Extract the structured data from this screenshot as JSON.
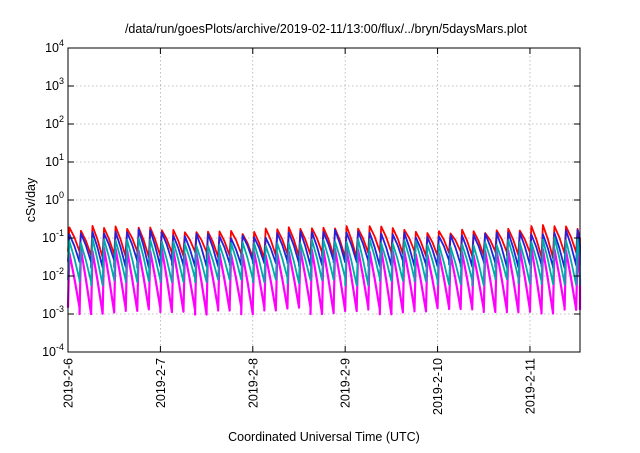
{
  "chart_data": {
    "type": "line",
    "title": "/data/run/goesPlots/archive/2019-02-11/13:00/flux/../bryn/5daysMars.plot",
    "xlabel": "Coordinated Universal Time (UTC)",
    "ylabel": "cSv/day",
    "yscale": "log",
    "ylim": [
      0.0001,
      10000
    ],
    "y_ticks": [
      {
        "value": 0.0001,
        "base": "10",
        "exp": "-4"
      },
      {
        "value": 0.001,
        "base": "10",
        "exp": "-3"
      },
      {
        "value": 0.01,
        "base": "10",
        "exp": "-2"
      },
      {
        "value": 0.1,
        "base": "10",
        "exp": "-1"
      },
      {
        "value": 1,
        "base": "10",
        "exp": "0"
      },
      {
        "value": 10,
        "base": "10",
        "exp": "1"
      },
      {
        "value": 100,
        "base": "10",
        "exp": "2"
      },
      {
        "value": 1000,
        "base": "10",
        "exp": "3"
      },
      {
        "value": 10000,
        "base": "10",
        "exp": "4"
      }
    ],
    "xlim": [
      "2019-02-06T00:00",
      "2019-02-11T13:00"
    ],
    "x_ticks": [
      "2019-2-6",
      "2019-2-7",
      "2019-2-8",
      "2019-2-9",
      "2019-2-10",
      "2019-2-11"
    ],
    "x_tick_dates": [
      "2019-02-06",
      "2019-02-07",
      "2019-02-08",
      "2019-02-09",
      "2019-02-10",
      "2019-02-11"
    ],
    "grid": true,
    "cycle_hours": 3,
    "series": [
      {
        "color": "#ff0000",
        "peak": 0.17,
        "trough": 0.035
      },
      {
        "color": "#ff00ff",
        "peak": 0.045,
        "trough": 0.0012
      },
      {
        "color": "#2222dd",
        "peak": 0.13,
        "trough": 0.02
      },
      {
        "color": "#00aaaa",
        "peak": 0.08,
        "trough": 0.007
      }
    ]
  }
}
